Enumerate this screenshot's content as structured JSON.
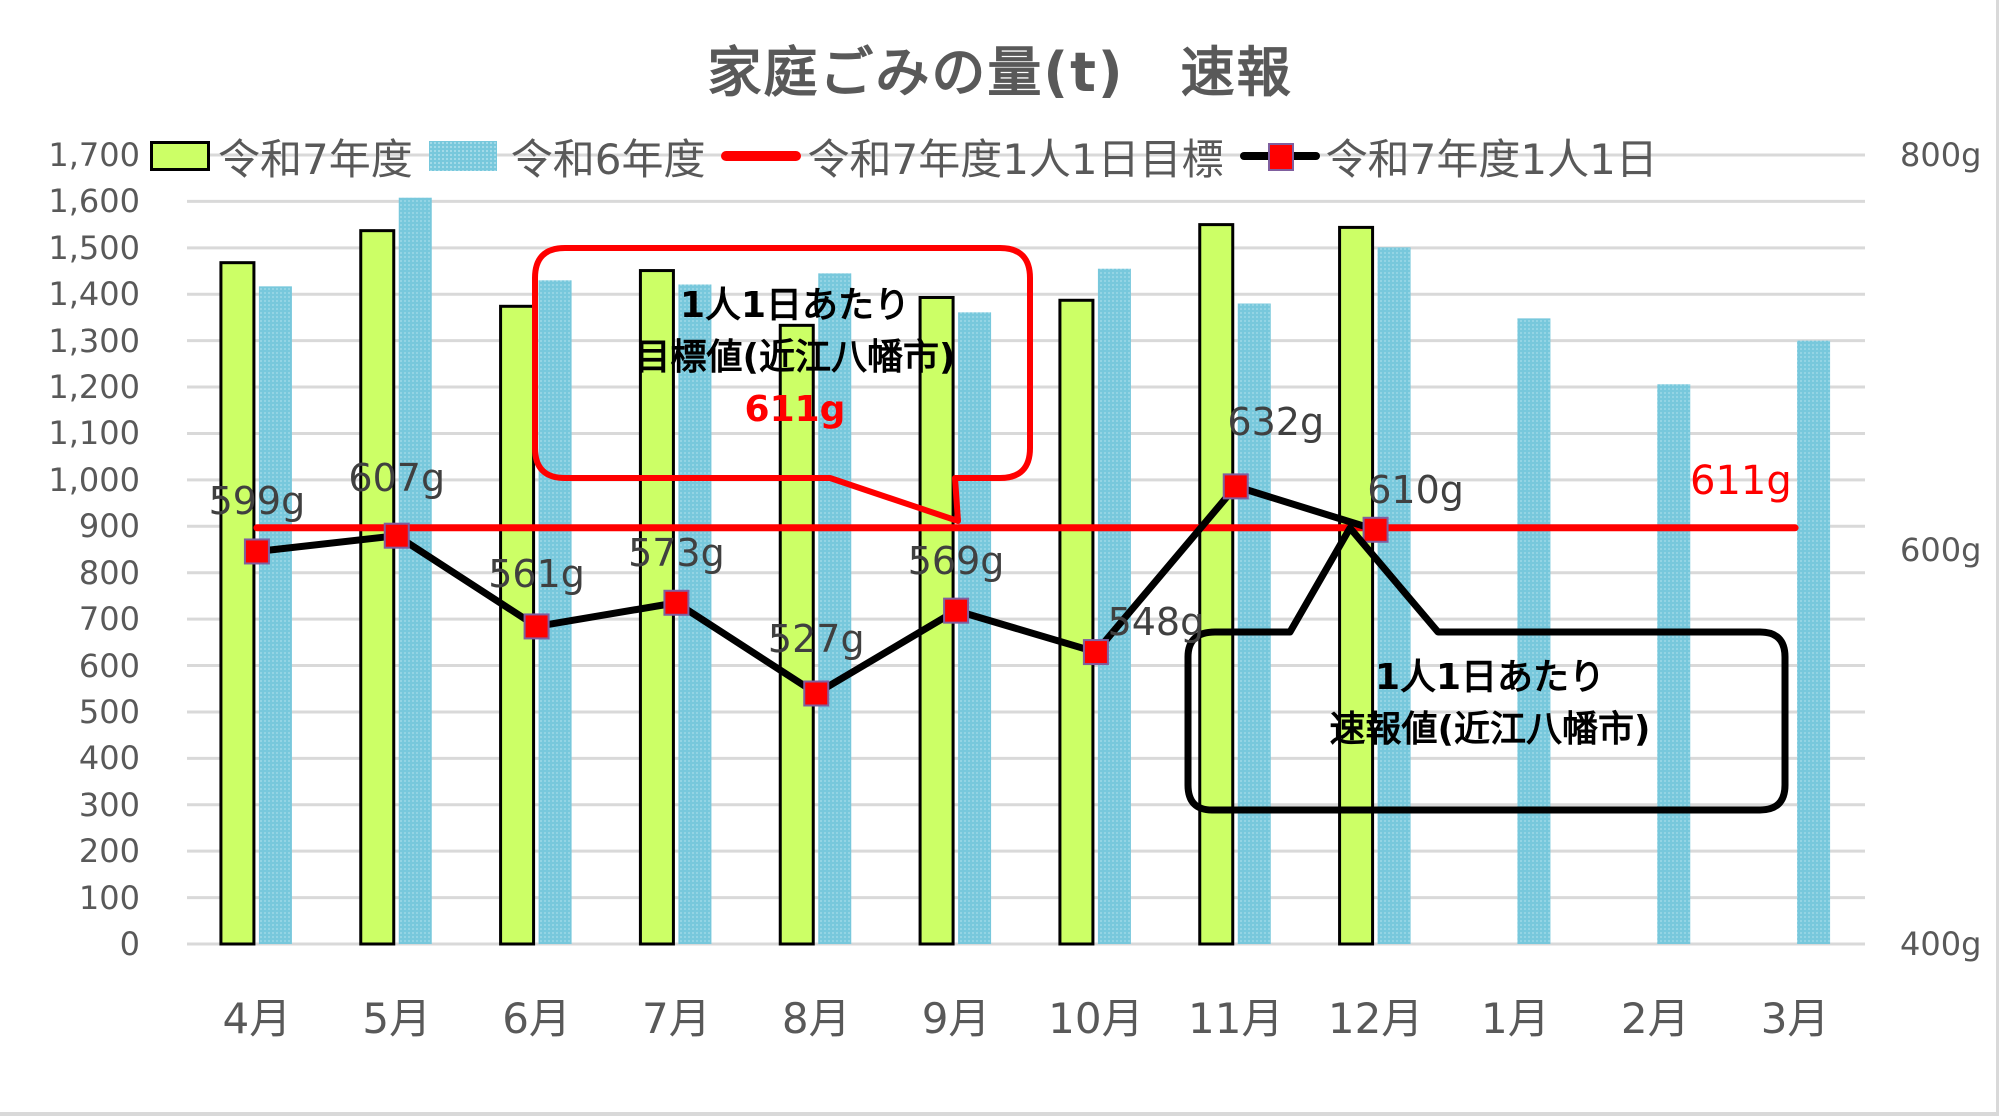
{
  "title": "家庭ごみの量(t)　速報",
  "legend": [
    {
      "label": "令和7年度",
      "kind": "bar",
      "color": "#ccff66"
    },
    {
      "label": "令和6年度",
      "kind": "bar",
      "color": "#78c8dc"
    },
    {
      "label": "令和7年度1人1日目標",
      "kind": "line",
      "color": "#ff0000"
    },
    {
      "label": "令和7年度1人1日",
      "kind": "line-marker",
      "color": "#000000",
      "marker_color": "#ff0000"
    }
  ],
  "y_axis_left": {
    "ticks": [
      "0",
      "100",
      "200",
      "300",
      "400",
      "500",
      "600",
      "700",
      "800",
      "900",
      "1,000",
      "1,100",
      "1,200",
      "1,300",
      "1,400",
      "1,500",
      "1,600",
      "1,700"
    ]
  },
  "y_axis_right": {
    "ticks": [
      "400g",
      "600g",
      "800g"
    ]
  },
  "x_axis": {
    "ticks": [
      "4月",
      "5月",
      "6月",
      "7月",
      "8月",
      "9月",
      "10月",
      "11月",
      "12月",
      "1月",
      "2月",
      "3月"
    ]
  },
  "callouts": {
    "target": {
      "line1": "1人1日あたり",
      "line2": "目標値(近江八幡市)",
      "value": "611g",
      "color": "#ff0000"
    },
    "preliminary": {
      "line1": "1人1日あたり",
      "line2": "速報値(近江八幡市)",
      "color": "#000000"
    }
  },
  "target_label": "611g",
  "per_capita_labels": [
    "599g",
    "607g",
    "561g",
    "573g",
    "527g",
    "569g",
    "548g",
    "632g",
    "610g"
  ],
  "colors": {
    "r7_bar": "#ccff66",
    "r6_bar": "#78c8dc",
    "target_line": "#ff0000",
    "per_capita_line": "#000000",
    "marker": "#ff0000",
    "gridline": "#d9d9d9",
    "text": "#595959"
  },
  "chart_data": {
    "type": "bar",
    "title": "家庭ごみの量(t)　速報",
    "categories": [
      "4月",
      "5月",
      "6月",
      "7月",
      "8月",
      "9月",
      "10月",
      "11月",
      "12月",
      "1月",
      "2月",
      "3月"
    ],
    "series": [
      {
        "name": "令和7年度",
        "type": "bar",
        "axis": "left",
        "unit": "t",
        "values": [
          1468,
          1537,
          1374,
          1451,
          1333,
          1393,
          1387,
          1550,
          1544,
          null,
          null,
          null
        ]
      },
      {
        "name": "令和6年度",
        "type": "bar",
        "axis": "left",
        "unit": "t",
        "values": [
          1417,
          1608,
          1430,
          1421,
          1445,
          1361,
          1455,
          1380,
          1501,
          1348,
          1206,
          1300
        ]
      },
      {
        "name": "令和7年度1人1日目標",
        "type": "line",
        "axis": "right",
        "unit": "g",
        "values": [
          611,
          611,
          611,
          611,
          611,
          611,
          611,
          611,
          611,
          611,
          611,
          611
        ]
      },
      {
        "name": "令和7年度1人1日",
        "type": "line",
        "axis": "right",
        "unit": "g",
        "values": [
          599,
          607,
          561,
          573,
          527,
          569,
          548,
          632,
          610,
          null,
          null,
          null
        ]
      }
    ],
    "xlabel": "",
    "ylabel": "",
    "ylim": [
      0,
      1700
    ],
    "y2lim": [
      400,
      800
    ],
    "grid": true,
    "legend_position": "top",
    "annotations": [
      "1人1日あたり 目標値(近江八幡市) 611g",
      "1人1日あたり 速報値(近江八幡市)",
      "611g"
    ]
  }
}
